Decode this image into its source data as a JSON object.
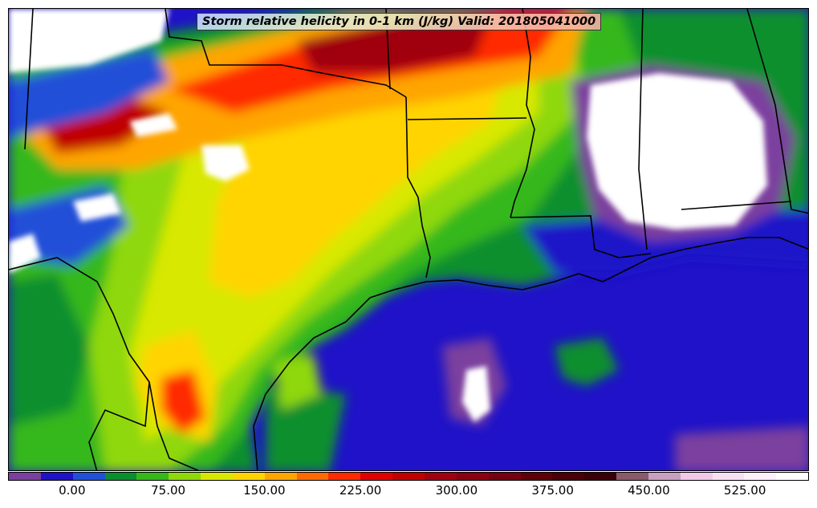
{
  "title": "Storm relative helicity in 0-1 km (J/kg) Valid: 201805041000",
  "colorbar": {
    "colors": [
      "#7b3f9e",
      "#1f12c8",
      "#2050d8",
      "#0a8f2f",
      "#35b81a",
      "#8fd80a",
      "#d8e800",
      "#ffd400",
      "#ffa500",
      "#ff6a00",
      "#ff2a00",
      "#e00000",
      "#c00000",
      "#a00010",
      "#8a0010",
      "#740010",
      "#5e0008",
      "#4a0008",
      "#3a0008",
      "#8a5a6a",
      "#c8a0c0",
      "#f0c8e8",
      "#f8e0f4",
      "#fcf0fa",
      "#ffffff"
    ],
    "ticks": [
      "0.00",
      "75.00",
      "150.00",
      "225.00",
      "300.00",
      "375.00",
      "450.00",
      "525.00"
    ],
    "tick_values": [
      0,
      75,
      150,
      225,
      300,
      375,
      450,
      525
    ],
    "range": [
      -50,
      575
    ]
  }
}
